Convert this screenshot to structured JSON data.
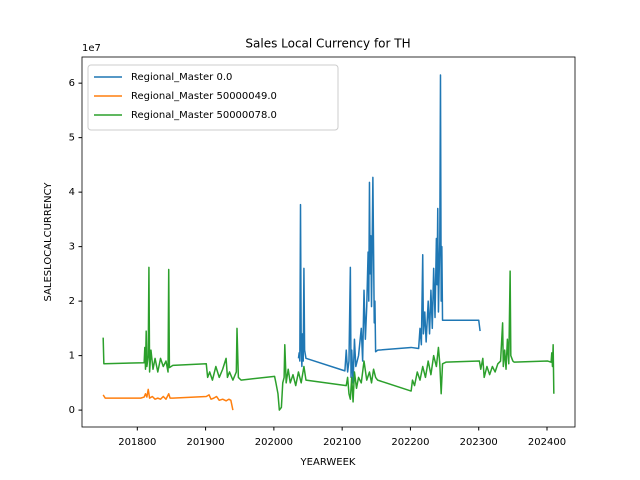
{
  "chart_data": {
    "type": "line",
    "title": "Sales Local Currency for TH",
    "xlabel": "YEARWEEK",
    "ylabel": "SALESLOCALCURRENCY",
    "y_offset_label": "1e7",
    "xlim": [
      201719,
      202441
    ],
    "ylim": [
      -0.31,
      6.48
    ],
    "xticks": [
      201800,
      201900,
      202000,
      202100,
      202200,
      202300,
      202400
    ],
    "yticks": [
      0,
      1,
      2,
      3,
      4,
      5,
      6
    ],
    "grid": false,
    "legend": "upper-left",
    "series": [
      {
        "name": "Regional_Master 0.0",
        "color": "#1f77b4",
        "x": [
          202036,
          202037,
          202038,
          202039,
          202040,
          202041,
          202042,
          202043,
          202044,
          202045,
          202047,
          202104,
          202106,
          202108,
          202110,
          202112,
          202113,
          202114,
          202116,
          202118,
          202120,
          202124,
          202128,
          202130,
          202132,
          202134,
          202136,
          202138,
          202139,
          202140,
          202141,
          202142,
          202143,
          202145,
          202147,
          202148,
          202149,
          202152,
          202201,
          202212,
          202214,
          202216,
          202218,
          202219,
          202221,
          202223,
          202226,
          202228,
          202230,
          202232,
          202234,
          202236,
          202238,
          202239,
          202240,
          202241,
          202243,
          202244,
          202245,
          202246,
          202247,
          202300,
          202302
        ],
        "values": [
          0.95,
          1.05,
          0.9,
          3.77,
          1.2,
          0.8,
          1.4,
          0.9,
          2.6,
          1.1,
          0.95,
          0.72,
          1.1,
          0.7,
          0.9,
          2.62,
          0.6,
          1.1,
          0.5,
          1.3,
          0.8,
          1.0,
          1.5,
          0.9,
          2.2,
          1.3,
          1.9,
          2.9,
          2.0,
          4.18,
          2.5,
          3.2,
          1.9,
          4.27,
          1.6,
          2.0,
          1.07,
          1.1,
          1.15,
          1.13,
          1.5,
          1.2,
          2.85,
          1.4,
          1.8,
          1.25,
          2.0,
          1.4,
          2.2,
          1.5,
          2.6,
          1.7,
          3.15,
          2.3,
          3.7,
          1.8,
          3.1,
          6.15,
          2.0,
          3.0,
          1.65,
          1.65,
          1.45
        ]
      },
      {
        "name": "Regional_Master 50000049.0",
        "color": "#ff7f0e",
        "x": [
          201750,
          201753,
          201805,
          201810,
          201812,
          201814,
          201816,
          201818,
          201822,
          201826,
          201830,
          201834,
          201838,
          201842,
          201846,
          201848,
          201852,
          201901,
          201905,
          201908,
          201912,
          201916,
          201920,
          201925,
          201930,
          201934,
          201937,
          201940
        ],
        "values": [
          0.28,
          0.22,
          0.22,
          0.24,
          0.3,
          0.24,
          0.38,
          0.22,
          0.25,
          0.2,
          0.22,
          0.2,
          0.25,
          0.2,
          0.3,
          0.22,
          0.22,
          0.25,
          0.28,
          0.2,
          0.22,
          0.25,
          0.18,
          0.2,
          0.17,
          0.2,
          0.18,
          0.0
        ]
      },
      {
        "name": "Regional_Master 50000078.0",
        "color": "#2ca02c",
        "x": [
          201750,
          201751,
          201810,
          201811,
          201812,
          201813,
          201814,
          201816,
          201817,
          201818,
          201820,
          201823,
          201826,
          201830,
          201834,
          201838,
          201842,
          201845,
          201846,
          201847,
          201852,
          201901,
          201903,
          201906,
          201910,
          201915,
          201920,
          201925,
          201930,
          201932,
          201935,
          201940,
          201945,
          201946,
          201948,
          201952,
          202001,
          202003,
          202006,
          202008,
          202011,
          202013,
          202015,
          202016,
          202018,
          202021,
          202024,
          202028,
          202032,
          202036,
          202040,
          202044,
          202047,
          202106,
          202108,
          202110,
          202112,
          202114,
          202116,
          202118,
          202121,
          202124,
          202128,
          202132,
          202136,
          202140,
          202143,
          202146,
          202149,
          202152,
          202201,
          202203,
          202206,
          202210,
          202214,
          202218,
          202222,
          202226,
          202230,
          202234,
          202238,
          202241,
          202243,
          202245,
          202247,
          202252,
          202301,
          202303,
          202306,
          202308,
          202312,
          202316,
          202320,
          202324,
          202328,
          202332,
          202335,
          202336,
          202338,
          202340,
          202342,
          202344,
          202346,
          202347,
          202350,
          202352,
          202401,
          202406,
          202407,
          202408,
          202409,
          202410
        ],
        "values": [
          1.33,
          0.85,
          0.87,
          1.15,
          0.75,
          1.45,
          0.8,
          1.0,
          2.62,
          0.7,
          1.1,
          0.75,
          0.95,
          0.7,
          0.95,
          0.8,
          0.9,
          0.7,
          2.58,
          0.78,
          0.82,
          0.85,
          0.6,
          0.7,
          0.55,
          0.8,
          0.6,
          0.75,
          0.95,
          0.6,
          0.7,
          0.55,
          0.7,
          1.5,
          0.6,
          0.55,
          0.62,
          0.5,
          0.3,
          0.0,
          0.05,
          0.5,
          0.6,
          1.2,
          0.5,
          0.75,
          0.5,
          0.65,
          0.45,
          0.7,
          0.5,
          0.8,
          0.55,
          0.45,
          0.6,
          0.3,
          0.2,
          0.6,
          0.15,
          0.7,
          0.4,
          0.6,
          0.5,
          0.9,
          0.55,
          0.7,
          0.5,
          0.75,
          0.6,
          0.55,
          0.35,
          0.55,
          0.45,
          0.7,
          0.55,
          0.8,
          0.6,
          0.9,
          0.65,
          1.0,
          0.8,
          1.15,
          0.85,
          0.3,
          0.85,
          0.88,
          0.9,
          0.75,
          0.95,
          0.6,
          0.8,
          0.65,
          0.8,
          0.7,
          0.85,
          0.9,
          1.6,
          0.8,
          1.1,
          0.75,
          1.3,
          0.85,
          2.55,
          1.0,
          0.9,
          0.88,
          0.9,
          0.88,
          1.05,
          0.8,
          1.2,
          0.3
        ]
      }
    ]
  }
}
